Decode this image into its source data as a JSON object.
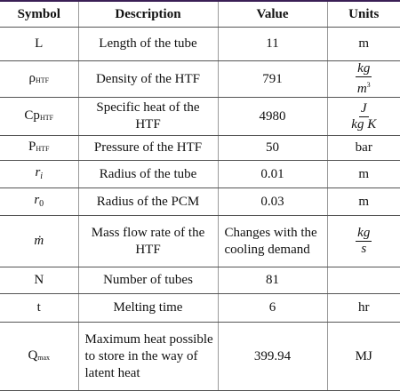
{
  "headers": [
    "Symbol",
    "Description",
    "Value",
    "Units"
  ],
  "rows": [
    {
      "symbol": "L",
      "description": "Length of the tube",
      "value": "11",
      "unit": "m"
    },
    {
      "symbol": "ρ",
      "symbol_sub": "HTF",
      "description": "Density of the HTF",
      "value": "791",
      "unit_num": "kg",
      "unit_den": "m",
      "unit_den_sup": "3"
    },
    {
      "symbol": "Cp",
      "symbol_sub": "HTF",
      "description": "Specific heat of the HTF",
      "value": "4980",
      "unit_num": "J",
      "unit_den": "kg K"
    },
    {
      "symbol": "P",
      "symbol_sub": "HTF",
      "description": "Pressure of the HTF",
      "value": "50",
      "unit": "bar"
    },
    {
      "symbol": "r",
      "symbol_sub": "i",
      "description": "Radius of the tube",
      "value": "0.01",
      "unit": "m"
    },
    {
      "symbol": "r",
      "symbol_sub": "0",
      "description": "Radius of the PCM",
      "value": "0.03",
      "unit": "m"
    },
    {
      "symbol": "ṁ",
      "description": "Mass flow rate of the HTF",
      "value": "Changes with the cooling demand",
      "unit_num": "kg",
      "unit_den": "s"
    },
    {
      "symbol": "N",
      "description": "Number of tubes",
      "value": "81",
      "unit": ""
    },
    {
      "symbol": "t",
      "description": "Melting time",
      "value": "6",
      "unit": "hr"
    },
    {
      "symbol": "Q",
      "symbol_sub": "max",
      "description": "Maximum heat possible to store in the way of latent heat",
      "value": "399.94",
      "unit": "MJ"
    }
  ]
}
